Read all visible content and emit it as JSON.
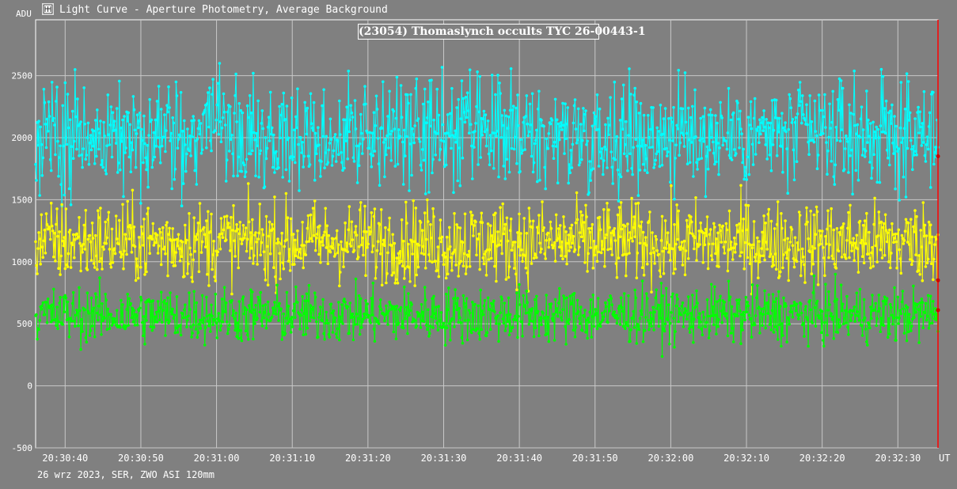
{
  "window": {
    "title": "Light Curve - Aperture Photometry, Average Background",
    "icon": "light-curve-app-icon"
  },
  "footer": {
    "caption": "26 wrz 2023, SER, ZWO ASI 120mm"
  },
  "chart_data": {
    "type": "line",
    "title": "(23054) Thomaslynch occults TYC 26-00443-1",
    "xlabel": "UT",
    "ylabel": "ADU",
    "x_ticks": [
      "20:30:40",
      "20:30:50",
      "20:31:00",
      "20:31:10",
      "20:31:20",
      "20:31:30",
      "20:31:40",
      "20:31:50",
      "20:32:00",
      "20:32:10",
      "20:32:20",
      "20:32:30"
    ],
    "y_ticks": [
      -500,
      0,
      500,
      1000,
      1500,
      2000,
      2500
    ],
    "x_range": [
      "20:30:36.1",
      "20:32:35.3"
    ],
    "ylim": [
      -500,
      2950
    ],
    "grid": true,
    "cursor_time": "20:32:35.3",
    "series": [
      {
        "color": "#00ffff",
        "mean": 2020,
        "noise": 210,
        "min": 1450,
        "max": 2700,
        "points": 1100
      },
      {
        "color": "#ffff00",
        "mean": 1160,
        "noise": 160,
        "min": 740,
        "max": 1690,
        "points": 1100
      },
      {
        "color": "#00ff00",
        "mean": 570,
        "noise": 110,
        "min": 230,
        "max": 990,
        "points": 1100
      }
    ],
    "cursor_values": [
      1850,
      850,
      610
    ]
  }
}
